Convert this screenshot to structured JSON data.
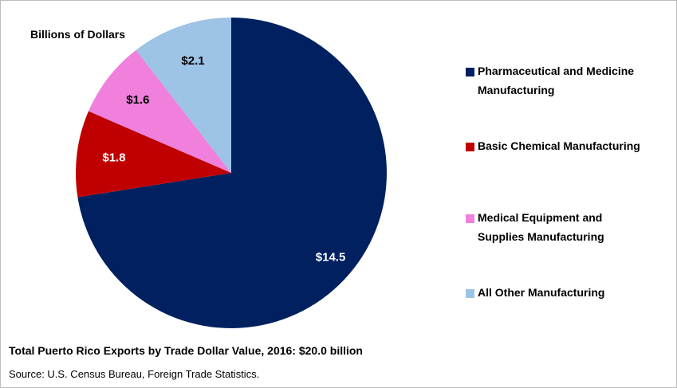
{
  "chart_data": {
    "type": "pie",
    "subtitle": "Billions of Dollars",
    "categories": [
      "Pharmaceutical and Medicine Manufacturing",
      "Basic Chemical Manufacturing",
      "Medical Equipment and Supplies Manufacturing",
      "All Other Manufacturing"
    ],
    "values": [
      14.5,
      1.8,
      1.6,
      2.1
    ],
    "value_labels": [
      "$14.5",
      "$1.8",
      "$1.6",
      "$2.1"
    ],
    "colors": [
      "#002060",
      "#c00000",
      "#f080dc",
      "#9dc3e6"
    ],
    "label_colors": [
      "#ffffff",
      "#ffffff",
      "#000000",
      "#000000"
    ],
    "legend": "right",
    "caption": "Total Puerto Rico Exports by Trade Dollar Value, 2016: $20.0 billion",
    "source": "Source: U.S. Census Bureau, Foreign Trade Statistics."
  }
}
